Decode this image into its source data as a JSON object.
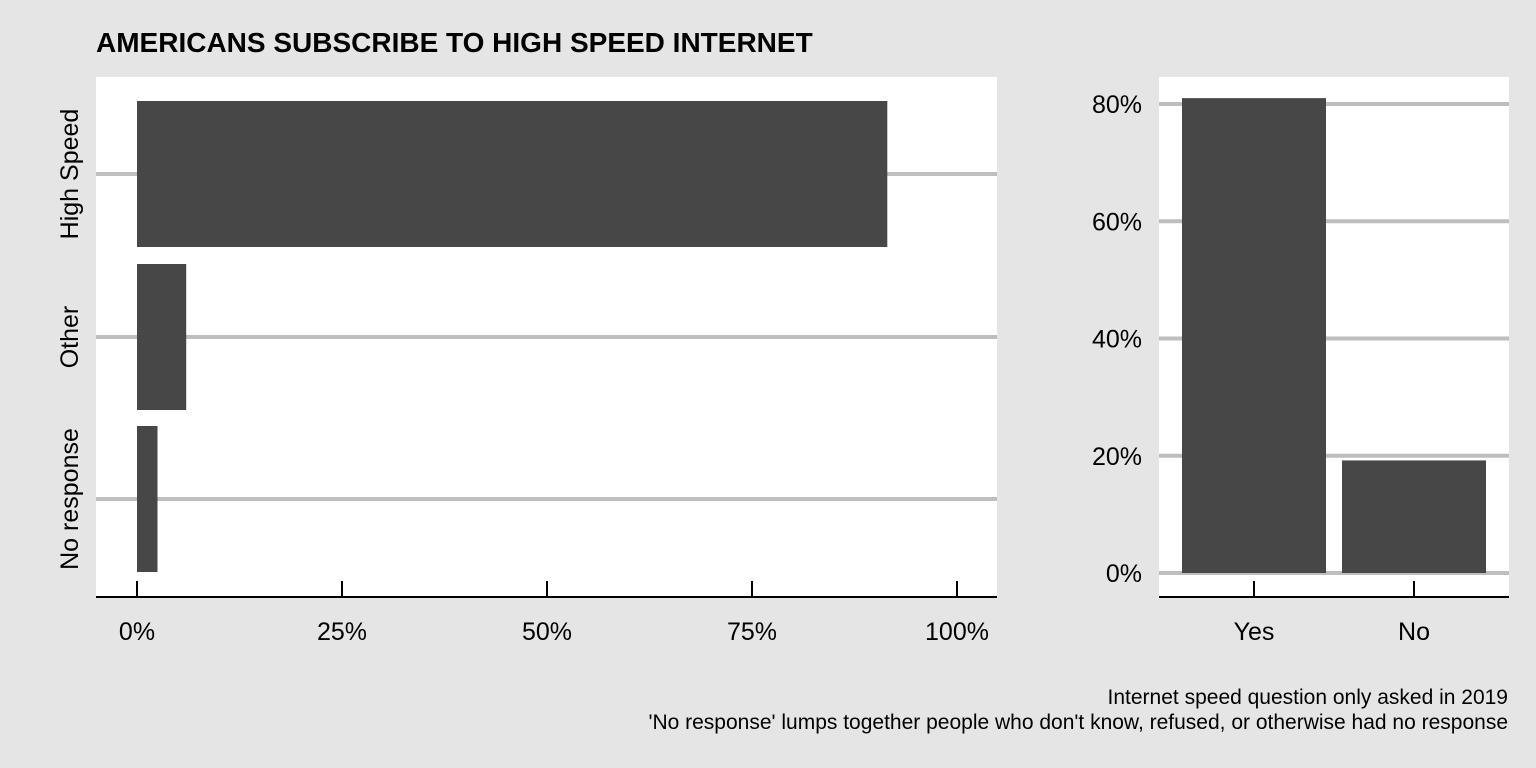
{
  "title": "AMERICANS SUBSCRIBE TO HIGH SPEED INTERNET",
  "captions": [
    "Internet speed question only asked in 2019",
    "'No response' lumps together people who don't know, refused, or otherwise had no response"
  ],
  "colors": {
    "background": "#e5e5e5",
    "panel": "#ffffff",
    "bar": "#474747",
    "grid": "#bebebe"
  },
  "chart_data": [
    {
      "type": "bar",
      "orientation": "horizontal",
      "title": "AMERICANS SUBSCRIBE TO HIGH SPEED INTERNET",
      "categories": [
        "High Speed",
        "Other",
        "No response"
      ],
      "values": [
        91.5,
        6.0,
        2.5
      ],
      "xlabel": "",
      "ylabel": "",
      "xlim": [
        0,
        100
      ],
      "x_ticks": [
        0,
        25,
        50,
        75,
        100
      ],
      "x_tick_labels": [
        "0%",
        "25%",
        "50%",
        "75%",
        "100%"
      ],
      "grid": "major y"
    },
    {
      "type": "bar",
      "orientation": "vertical",
      "categories": [
        "Yes",
        "No"
      ],
      "values": [
        81,
        19.2
      ],
      "xlabel": "",
      "ylabel": "",
      "ylim": [
        0,
        80
      ],
      "y_ticks": [
        0,
        20,
        40,
        60,
        80
      ],
      "y_tick_labels": [
        "0%",
        "20%",
        "40%",
        "60%",
        "80%"
      ],
      "grid": "major y"
    }
  ]
}
